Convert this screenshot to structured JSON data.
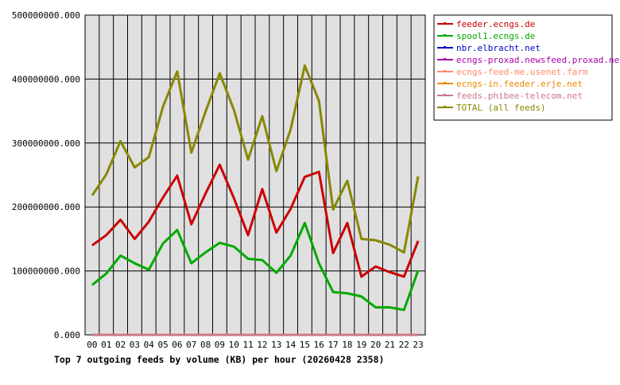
{
  "chart_data": {
    "type": "line",
    "title": "Top 7 outgoing feeds by volume (KB) per hour (20260428 2358)",
    "categories": [
      "00",
      "01",
      "02",
      "03",
      "04",
      "05",
      "06",
      "07",
      "08",
      "09",
      "10",
      "11",
      "12",
      "13",
      "14",
      "15",
      "16",
      "17",
      "18",
      "19",
      "20",
      "21",
      "22",
      "23"
    ],
    "ylim": [
      0,
      500000000
    ],
    "yticks": [
      0,
      100000000,
      200000000,
      300000000,
      400000000,
      500000000
    ],
    "ytick_labels": [
      "0.000",
      "100000000.000",
      "200000000.000",
      "300000000.000",
      "400000000.000",
      "500000000.000"
    ],
    "grid": true,
    "legend_position": "right",
    "series": [
      {
        "name": "feeder.ecngs.de",
        "color": "#cc0000",
        "values": [
          140000000,
          156000000,
          180000000,
          150000000,
          177000000,
          215000000,
          249000000,
          173000000,
          221000000,
          266000000,
          214000000,
          156000000,
          228000000,
          160000000,
          197000000,
          247000000,
          255000000,
          128000000,
          175000000,
          91000000,
          107000000,
          98000000,
          91000000,
          147000000
        ]
      },
      {
        "name": "spool1.ecngs.de",
        "color": "#00aa00",
        "values": [
          78000000,
          96000000,
          124000000,
          112000000,
          102000000,
          143000000,
          164000000,
          112000000,
          129000000,
          144000000,
          138000000,
          119000000,
          117000000,
          97000000,
          124000000,
          175000000,
          112000000,
          67000000,
          65000000,
          60000000,
          43000000,
          43000000,
          39000000,
          101000000
        ]
      },
      {
        "name": "nbr.elbracht.net",
        "color": "#0000cc",
        "values": [
          0,
          0,
          0,
          0,
          0,
          0,
          0,
          0,
          0,
          0,
          0,
          0,
          0,
          0,
          0,
          0,
          0,
          0,
          0,
          0,
          0,
          0,
          0,
          0
        ]
      },
      {
        "name": "ecngs-proxad.newsfeed.proxad.net",
        "color": "#aa00aa",
        "values": [
          0,
          0,
          0,
          0,
          0,
          0,
          0,
          0,
          0,
          0,
          0,
          0,
          0,
          0,
          0,
          0,
          0,
          0,
          0,
          0,
          0,
          0,
          0,
          0
        ]
      },
      {
        "name": "ecngs-feed-me.usenet.farm",
        "color": "#ff8866",
        "values": [
          0,
          0,
          0,
          0,
          0,
          0,
          0,
          0,
          0,
          0,
          0,
          0,
          0,
          0,
          0,
          0,
          0,
          0,
          0,
          0,
          0,
          0,
          0,
          0
        ]
      },
      {
        "name": "ecngs-in.feeder.erje.net",
        "color": "#ee8800",
        "values": [
          0,
          0,
          0,
          0,
          0,
          0,
          0,
          0,
          0,
          0,
          0,
          0,
          0,
          0,
          0,
          0,
          0,
          0,
          0,
          0,
          0,
          0,
          0,
          0
        ]
      },
      {
        "name": "feeds.phibee-telecom.net",
        "color": "#cc7788",
        "values": [
          0,
          0,
          0,
          0,
          0,
          0,
          0,
          0,
          0,
          0,
          0,
          0,
          0,
          0,
          0,
          0,
          0,
          0,
          0,
          0,
          0,
          0,
          0,
          0
        ]
      },
      {
        "name": "TOTAL (all feeds)",
        "color": "#888800",
        "values": [
          218000000,
          251000000,
          303000000,
          262000000,
          278000000,
          357000000,
          412000000,
          285000000,
          349000000,
          409000000,
          352000000,
          274000000,
          342000000,
          256000000,
          321000000,
          421000000,
          366000000,
          196000000,
          241000000,
          150000000,
          148000000,
          141000000,
          129000000,
          248000000
        ]
      }
    ]
  }
}
